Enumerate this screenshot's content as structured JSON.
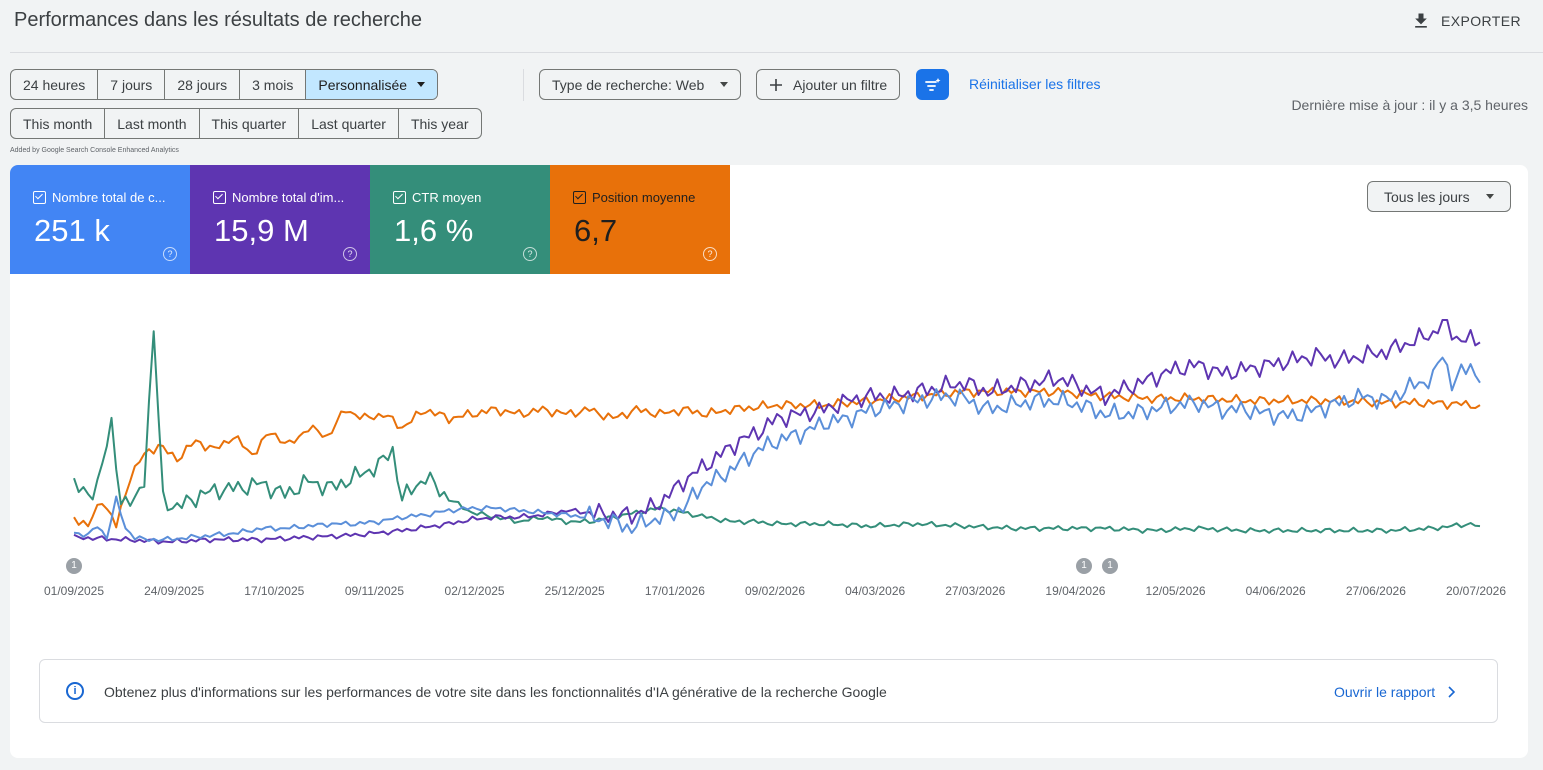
{
  "header": {
    "title": "Performances dans les résultats de recherche",
    "export_label": "EXPORTER"
  },
  "date_ranges": {
    "row1": [
      {
        "label": "24 heures",
        "selected": false
      },
      {
        "label": "7 jours",
        "selected": false
      },
      {
        "label": "28 jours",
        "selected": false
      },
      {
        "label": "3 mois",
        "selected": false
      },
      {
        "label": "Personnalisée",
        "selected": true
      }
    ],
    "row2": [
      {
        "label": "This month"
      },
      {
        "label": "Last month"
      },
      {
        "label": "This quarter"
      },
      {
        "label": "Last quarter"
      },
      {
        "label": "This year"
      }
    ],
    "added_note": "Added by Google Search Console Enhanced Analytics"
  },
  "filters": {
    "search_type": "Type de recherche: Web",
    "add_filter": "Ajouter un filtre",
    "reset": "Réinitialiser les filtres",
    "last_update": "Dernière mise à jour : il y a 3,5 heures"
  },
  "metrics": {
    "clicks": {
      "label": "Nombre total de c...",
      "value": "251 k",
      "color": "#4285f4"
    },
    "impressions": {
      "label": "Nombre total d'im...",
      "value": "15,9 M",
      "color": "#5e35b1"
    },
    "ctr": {
      "label": "CTR moyen",
      "value": "1,6 %",
      "color": "#348e7a"
    },
    "position": {
      "label": "Position moyenne",
      "value": "6,7",
      "color": "#e8710a"
    }
  },
  "granularity": "Tous les jours",
  "annotations": {
    "marker": "1",
    "dates": [
      "01/09/2025",
      "19/04/2026",
      "25/04/2026"
    ]
  },
  "chart_data": {
    "type": "line",
    "x_start": "01/09/2025",
    "x_end": "20/07/2026",
    "x_tick_labels": [
      "01/09/2025",
      "24/09/2025",
      "17/10/2025",
      "09/11/2025",
      "02/12/2025",
      "25/12/2025",
      "17/01/2026",
      "09/02/2026",
      "04/03/2026",
      "27/03/2026",
      "19/04/2026",
      "12/05/2026",
      "04/06/2026",
      "27/06/2026",
      "20/07/2026"
    ],
    "y_axes_hidden": true,
    "grid": false,
    "relative_scale": "each series normalized to its own hidden axis; values are relative levels 0-100",
    "series": [
      {
        "name": "Nombre total de c...",
        "color": "#5b8fd9",
        "points": [
          [
            0,
            5
          ],
          [
            3,
            4
          ],
          [
            5,
            8
          ],
          [
            7,
            3
          ],
          [
            9,
            20
          ],
          [
            11,
            7
          ],
          [
            13,
            3
          ],
          [
            15,
            2
          ],
          [
            20,
            2
          ],
          [
            25,
            3
          ],
          [
            30,
            4
          ],
          [
            35,
            5
          ],
          [
            40,
            7
          ],
          [
            45,
            7
          ],
          [
            50,
            8
          ],
          [
            55,
            9
          ],
          [
            60,
            9
          ],
          [
            65,
            10
          ],
          [
            70,
            12
          ],
          [
            75,
            13
          ],
          [
            80,
            15
          ],
          [
            85,
            16
          ],
          [
            90,
            16
          ],
          [
            95,
            15
          ],
          [
            100,
            14
          ],
          [
            105,
            13
          ],
          [
            110,
            12
          ],
          [
            115,
            10
          ],
          [
            119,
            7
          ],
          [
            122,
            10
          ],
          [
            126,
            12
          ],
          [
            130,
            16
          ],
          [
            134,
            26
          ],
          [
            138,
            30
          ],
          [
            142,
            36
          ],
          [
            146,
            42
          ],
          [
            150,
            46
          ],
          [
            156,
            50
          ],
          [
            160,
            54
          ],
          [
            165,
            56
          ],
          [
            170,
            60
          ],
          [
            175,
            62
          ],
          [
            180,
            64
          ],
          [
            186,
            66
          ],
          [
            190,
            65
          ],
          [
            195,
            60
          ],
          [
            200,
            62
          ],
          [
            205,
            64
          ],
          [
            210,
            64
          ],
          [
            215,
            62
          ],
          [
            220,
            58
          ],
          [
            225,
            58
          ],
          [
            230,
            60
          ],
          [
            235,
            62
          ],
          [
            240,
            63
          ],
          [
            245,
            60
          ],
          [
            250,
            60
          ],
          [
            255,
            58
          ],
          [
            260,
            57
          ],
          [
            265,
            60
          ],
          [
            270,
            63
          ],
          [
            275,
            66
          ],
          [
            280,
            64
          ],
          [
            285,
            70
          ],
          [
            290,
            74
          ],
          [
            292,
            85
          ],
          [
            294,
            72
          ],
          [
            298,
            80
          ],
          [
            300,
            72
          ]
        ]
      },
      {
        "name": "Nombre total d'im...",
        "color": "#5e35b1",
        "points": [
          [
            0,
            3
          ],
          [
            10,
            2
          ],
          [
            20,
            1
          ],
          [
            30,
            2
          ],
          [
            40,
            2
          ],
          [
            50,
            3
          ],
          [
            60,
            4
          ],
          [
            70,
            6
          ],
          [
            80,
            9
          ],
          [
            85,
            11
          ],
          [
            90,
            12
          ],
          [
            95,
            12
          ],
          [
            100,
            13
          ],
          [
            105,
            15
          ],
          [
            110,
            14
          ],
          [
            115,
            13
          ],
          [
            119,
            13
          ],
          [
            122,
            15
          ],
          [
            126,
            20
          ],
          [
            130,
            28
          ],
          [
            134,
            34
          ],
          [
            138,
            40
          ],
          [
            142,
            46
          ],
          [
            146,
            50
          ],
          [
            150,
            56
          ],
          [
            155,
            58
          ],
          [
            160,
            60
          ],
          [
            165,
            64
          ],
          [
            170,
            66
          ],
          [
            175,
            66
          ],
          [
            180,
            68
          ],
          [
            185,
            70
          ],
          [
            190,
            72
          ],
          [
            195,
            68
          ],
          [
            200,
            70
          ],
          [
            205,
            72
          ],
          [
            210,
            74
          ],
          [
            215,
            70
          ],
          [
            220,
            66
          ],
          [
            225,
            70
          ],
          [
            230,
            74
          ],
          [
            235,
            78
          ],
          [
            240,
            80
          ],
          [
            245,
            76
          ],
          [
            250,
            78
          ],
          [
            255,
            80
          ],
          [
            260,
            82
          ],
          [
            265,
            84
          ],
          [
            270,
            82
          ],
          [
            275,
            84
          ],
          [
            280,
            86
          ],
          [
            285,
            90
          ],
          [
            290,
            94
          ],
          [
            292,
            100
          ],
          [
            295,
            92
          ],
          [
            300,
            90
          ]
        ]
      },
      {
        "name": "CTR moyen",
        "color": "#348e7a",
        "points": [
          [
            0,
            28
          ],
          [
            3,
            20
          ],
          [
            5,
            28
          ],
          [
            8,
            52
          ],
          [
            10,
            20
          ],
          [
            13,
            18
          ],
          [
            15,
            30
          ],
          [
            17,
            95
          ],
          [
            19,
            20
          ],
          [
            22,
            16
          ],
          [
            25,
            20
          ],
          [
            30,
            24
          ],
          [
            35,
            25
          ],
          [
            40,
            27
          ],
          [
            45,
            22
          ],
          [
            50,
            28
          ],
          [
            55,
            25
          ],
          [
            60,
            30
          ],
          [
            65,
            35
          ],
          [
            68,
            42
          ],
          [
            70,
            20
          ],
          [
            75,
            30
          ],
          [
            80,
            20
          ],
          [
            85,
            14
          ],
          [
            90,
            12
          ],
          [
            95,
            10
          ],
          [
            100,
            12
          ],
          [
            105,
            10
          ],
          [
            110,
            10
          ],
          [
            115,
            12
          ],
          [
            120,
            14
          ],
          [
            125,
            16
          ],
          [
            130,
            14
          ],
          [
            135,
            12
          ],
          [
            140,
            10
          ],
          [
            145,
            10
          ],
          [
            150,
            9
          ],
          [
            160,
            9
          ],
          [
            170,
            8
          ],
          [
            180,
            9
          ],
          [
            190,
            8
          ],
          [
            200,
            7
          ],
          [
            210,
            7
          ],
          [
            220,
            7
          ],
          [
            230,
            6
          ],
          [
            240,
            7
          ],
          [
            250,
            6
          ],
          [
            260,
            6
          ],
          [
            270,
            6
          ],
          [
            280,
            6
          ],
          [
            290,
            7
          ],
          [
            298,
            9
          ],
          [
            300,
            8
          ]
        ]
      },
      {
        "name": "Position moyenne",
        "color": "#e8710a",
        "points": [
          [
            0,
            12
          ],
          [
            3,
            8
          ],
          [
            6,
            20
          ],
          [
            9,
            8
          ],
          [
            12,
            30
          ],
          [
            15,
            40
          ],
          [
            18,
            44
          ],
          [
            22,
            38
          ],
          [
            26,
            46
          ],
          [
            30,
            42
          ],
          [
            34,
            48
          ],
          [
            38,
            40
          ],
          [
            42,
            50
          ],
          [
            46,
            44
          ],
          [
            50,
            52
          ],
          [
            54,
            48
          ],
          [
            58,
            60
          ],
          [
            62,
            56
          ],
          [
            66,
            58
          ],
          [
            70,
            52
          ],
          [
            75,
            60
          ],
          [
            80,
            56
          ],
          [
            85,
            58
          ],
          [
            90,
            60
          ],
          [
            95,
            58
          ],
          [
            100,
            60
          ],
          [
            105,
            58
          ],
          [
            110,
            60
          ],
          [
            115,
            56
          ],
          [
            120,
            60
          ],
          [
            125,
            58
          ],
          [
            130,
            60
          ],
          [
            135,
            58
          ],
          [
            140,
            60
          ],
          [
            150,
            62
          ],
          [
            160,
            62
          ],
          [
            170,
            64
          ],
          [
            180,
            66
          ],
          [
            190,
            68
          ],
          [
            200,
            68
          ],
          [
            210,
            68
          ],
          [
            220,
            66
          ],
          [
            230,
            65
          ],
          [
            240,
            65
          ],
          [
            250,
            64
          ],
          [
            260,
            64
          ],
          [
            270,
            64
          ],
          [
            280,
            63
          ],
          [
            290,
            63
          ],
          [
            300,
            62
          ]
        ]
      }
    ]
  },
  "ai_banner": {
    "text": "Obtenez plus d'informations sur les performances de votre site dans les fonctionnalités d'IA générative de la recherche Google",
    "link": "Ouvrir le rapport"
  }
}
